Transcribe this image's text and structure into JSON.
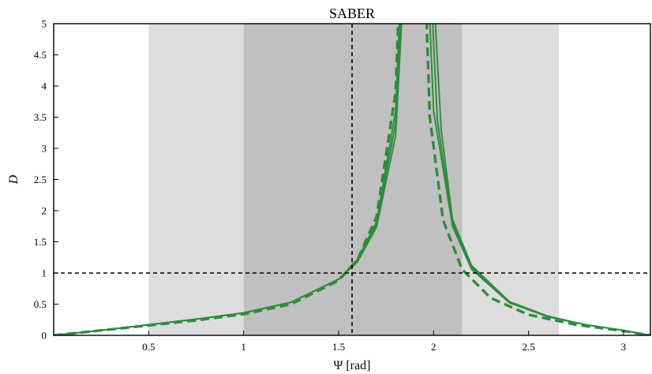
{
  "chart_data": {
    "type": "line",
    "title": "SABER",
    "xlabel": "Ψ [rad]",
    "ylabel": "D",
    "xlim": [
      0,
      3.1416
    ],
    "ylim": [
      0,
      5
    ],
    "x_ticks": [
      "0.5",
      "1",
      "1.5",
      "2",
      "2.5",
      "3"
    ],
    "x_tick_values": [
      0.5,
      1,
      1.5,
      2,
      2.5,
      3
    ],
    "y_ticks": [
      "0",
      "0.5",
      "1",
      "1.5",
      "2",
      "2.5",
      "3",
      "3.5",
      "4",
      "4.5",
      "5"
    ],
    "y_tick_values": [
      0,
      0.5,
      1,
      1.5,
      2,
      2.5,
      3,
      3.5,
      4,
      4.5,
      5
    ],
    "grid": false,
    "legend": "none",
    "shaded_bands": [
      {
        "x": [
          0.5,
          1.0
        ],
        "color": "#dddddd"
      },
      {
        "x": [
          1.0,
          2.15
        ],
        "color": "#c0c0c0"
      },
      {
        "x": [
          2.15,
          2.66
        ],
        "color": "#dddddd"
      }
    ],
    "reference_lines": [
      {
        "orientation": "horizontal",
        "value": 1,
        "style": "dashed",
        "color": "#000000"
      },
      {
        "orientation": "vertical",
        "value": 1.5708,
        "style": "dashed",
        "color": "#000000"
      }
    ],
    "series": [
      {
        "style": "solid",
        "color": "#2e8b3e",
        "asymptote": 1.9,
        "x": [
          0.001,
          0.25,
          0.5,
          0.75,
          1.0,
          1.25,
          1.5,
          1.6,
          1.7,
          1.8,
          1.85,
          1.95,
          2.0,
          2.1,
          2.2,
          2.4,
          2.6,
          2.8,
          3.0,
          3.1416
        ],
        "y": [
          0,
          0.08,
          0.17,
          0.26,
          0.36,
          0.53,
          0.9,
          1.22,
          1.82,
          3.6,
          7.2,
          7.2,
          3.6,
          1.75,
          1.06,
          0.52,
          0.3,
          0.17,
          0.08,
          0
        ]
      },
      {
        "style": "solid",
        "color": "#2e8b3e",
        "asymptote": 1.91,
        "x": [
          0.001,
          0.25,
          0.5,
          0.75,
          1.0,
          1.25,
          1.5,
          1.6,
          1.7,
          1.8,
          1.86,
          1.96,
          2.02,
          2.1,
          2.2,
          2.4,
          2.6,
          2.8,
          3.0,
          3.1416
        ],
        "y": [
          0,
          0.08,
          0.17,
          0.26,
          0.36,
          0.53,
          0.9,
          1.2,
          1.78,
          3.4,
          7.2,
          7.2,
          3.45,
          1.8,
          1.09,
          0.53,
          0.3,
          0.17,
          0.08,
          0
        ]
      },
      {
        "style": "solid",
        "color": "#2e8b3e",
        "asymptote": 1.92,
        "x": [
          0.001,
          0.25,
          0.5,
          0.75,
          1.0,
          1.25,
          1.5,
          1.6,
          1.7,
          1.8,
          1.87,
          1.97,
          2.04,
          2.1,
          2.2,
          2.4,
          2.6,
          2.8,
          3.0,
          3.1416
        ],
        "y": [
          0,
          0.08,
          0.17,
          0.26,
          0.36,
          0.53,
          0.9,
          1.18,
          1.74,
          3.2,
          7.2,
          7.2,
          3.3,
          1.86,
          1.12,
          0.54,
          0.31,
          0.17,
          0.08,
          0
        ]
      },
      {
        "style": "dashed",
        "color": "#2e8b3e",
        "asymptote": 1.89,
        "x": [
          0.001,
          0.25,
          0.5,
          0.75,
          1.0,
          1.25,
          1.5,
          1.6,
          1.7,
          1.8,
          1.84,
          1.94,
          1.98,
          2.05,
          2.15,
          2.3,
          2.5,
          2.75,
          3.0,
          3.1416
        ],
        "y": [
          0,
          0.08,
          0.16,
          0.24,
          0.34,
          0.5,
          0.88,
          1.22,
          1.9,
          3.9,
          7.2,
          7.2,
          3.5,
          1.85,
          1.06,
          0.6,
          0.33,
          0.17,
          0.07,
          0
        ]
      }
    ]
  }
}
